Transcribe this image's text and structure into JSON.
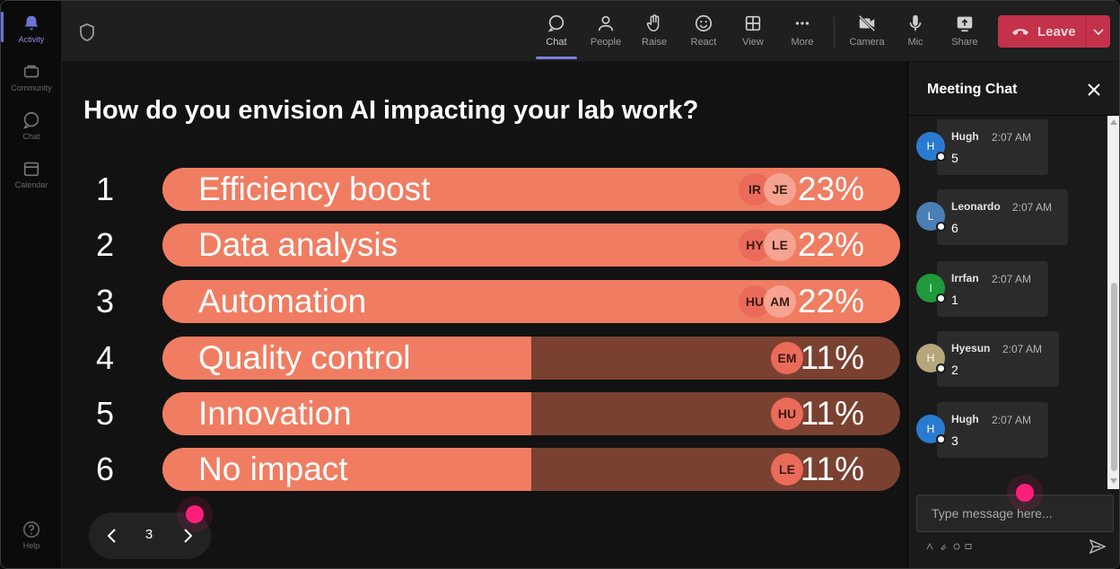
{
  "rail": {
    "items": [
      {
        "label": "Activity",
        "icon": "bell-icon"
      },
      {
        "label": "Community",
        "icon": "community-icon"
      },
      {
        "label": "Chat",
        "icon": "chat-icon"
      },
      {
        "label": "Calendar",
        "icon": "calendar-icon"
      }
    ],
    "help": {
      "label": "Help",
      "icon": "help-icon"
    }
  },
  "toolbar": {
    "buttons": [
      {
        "label": "Chat",
        "icon": "chat-icon"
      },
      {
        "label": "People",
        "icon": "people-icon"
      },
      {
        "label": "Raise",
        "icon": "hand-icon"
      },
      {
        "label": "React",
        "icon": "smiley-icon"
      },
      {
        "label": "View",
        "icon": "grid-icon"
      },
      {
        "label": "More",
        "icon": "more-icon"
      },
      {
        "label": "Camera",
        "icon": "camera-off-icon"
      },
      {
        "label": "Mic",
        "icon": "mic-icon"
      },
      {
        "label": "Share",
        "icon": "share-icon"
      }
    ],
    "leave_label": "Leave",
    "leave_color": "#c4314b"
  },
  "poll": {
    "question": "How do you envision AI impacting your lab work?",
    "bar_color": "#f07d62",
    "track_color": "#7a4131",
    "options": [
      {
        "rank": "1",
        "label": "Efficiency boost",
        "percent": "23%",
        "fill": 1.0,
        "avatars": [
          "IR",
          "JE"
        ]
      },
      {
        "rank": "2",
        "label": "Data analysis",
        "percent": "22%",
        "fill": 1.0,
        "avatars": [
          "HY",
          "LE"
        ]
      },
      {
        "rank": "3",
        "label": "Automation",
        "percent": "22%",
        "fill": 1.0,
        "avatars": [
          "HU",
          "AM"
        ]
      },
      {
        "rank": "4",
        "label": "Quality control",
        "percent": "11%",
        "fill": 0.5,
        "avatars": [
          "EM"
        ]
      },
      {
        "rank": "5",
        "label": "Innovation",
        "percent": "11%",
        "fill": 0.5,
        "avatars": [
          "HU"
        ]
      },
      {
        "rank": "6",
        "label": "No impact",
        "percent": "11%",
        "fill": 0.5,
        "avatars": [
          "LE"
        ]
      }
    ],
    "page": "3"
  },
  "chat": {
    "title": "Meeting Chat",
    "placeholder": "Type message here...",
    "messages": [
      {
        "initial": "H",
        "name": "Hugh",
        "time": "2:07 AM",
        "text": "5",
        "color": "#2a7bd0"
      },
      {
        "initial": "L",
        "name": "Leonardo",
        "time": "2:07 AM",
        "text": "6",
        "color": "#4a7fb5"
      },
      {
        "initial": "I",
        "name": "Irrfan",
        "time": "2:07 AM",
        "text": "1",
        "color": "#1e9a3a"
      },
      {
        "initial": "H",
        "name": "Hyesun",
        "time": "2:07 AM",
        "text": "2",
        "color": "#b5a77a"
      },
      {
        "initial": "H",
        "name": "Hugh",
        "time": "2:07 AM",
        "text": "3",
        "color": "#2a7bd0"
      }
    ]
  }
}
